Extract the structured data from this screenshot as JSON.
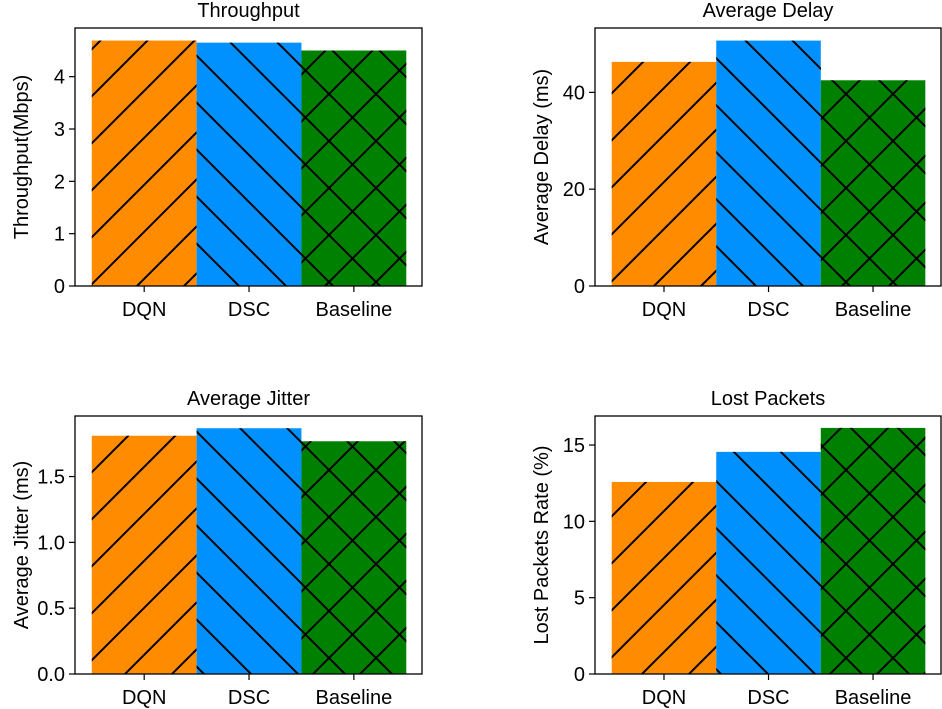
{
  "colors": {
    "DQN": "#ff8c00",
    "DSC": "#0091ff",
    "Baseline": "#008000"
  },
  "hatches": {
    "DQN": "/",
    "DSC": "\\",
    "Baseline": "x"
  },
  "chart_data": [
    {
      "type": "bar",
      "title": "Throughput",
      "xlabel": "",
      "ylabel": "Throughput(Mbps)",
      "categories": [
        "DQN",
        "DSC",
        "Baseline"
      ],
      "values": [
        4.69,
        4.65,
        4.5
      ],
      "ylim": [
        0,
        4.93
      ],
      "yticks": [
        0,
        1,
        2,
        3,
        4
      ],
      "ytick_labels": [
        "0",
        "1",
        "2",
        "3",
        "4"
      ],
      "grid": false
    },
    {
      "type": "bar",
      "title": "Average Delay",
      "xlabel": "",
      "ylabel": "Average Delay (ms)",
      "categories": [
        "DQN",
        "DSC",
        "Baseline"
      ],
      "values": [
        46.3,
        50.7,
        42.5
      ],
      "ylim": [
        0,
        53.3
      ],
      "yticks": [
        0,
        20,
        40
      ],
      "ytick_labels": [
        "0",
        "20",
        "40"
      ],
      "grid": false
    },
    {
      "type": "bar",
      "title": "Average Jitter",
      "xlabel": "",
      "ylabel": "Average Jitter (ms)",
      "categories": [
        "DQN",
        "DSC",
        "Baseline"
      ],
      "values": [
        1.81,
        1.867,
        1.768
      ],
      "ylim": [
        0,
        1.96
      ],
      "yticks": [
        0,
        0.5,
        1.0,
        1.5
      ],
      "ytick_labels": [
        "0.0",
        "0.5",
        "1.0",
        "1.5"
      ],
      "grid": false
    },
    {
      "type": "bar",
      "title": "Lost Packets",
      "xlabel": "",
      "ylabel": "Lost Packets Rate (%)",
      "categories": [
        "DQN",
        "DSC",
        "Baseline"
      ],
      "values": [
        12.58,
        14.55,
        16.12
      ],
      "ylim": [
        0,
        16.9
      ],
      "yticks": [
        0,
        5,
        10,
        15
      ],
      "ytick_labels": [
        "0",
        "5",
        "10",
        "15"
      ],
      "grid": false
    }
  ]
}
